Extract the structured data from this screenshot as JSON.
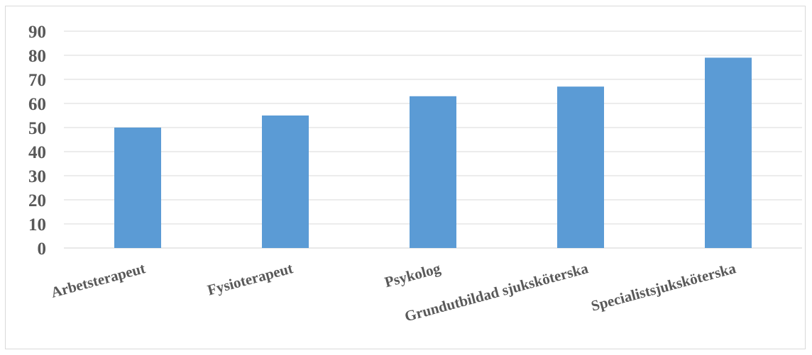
{
  "chart_data": {
    "type": "bar",
    "title": "",
    "xlabel": "",
    "ylabel": "",
    "ylim": [
      0,
      90
    ],
    "yticks": [
      0,
      10,
      20,
      30,
      40,
      50,
      60,
      70,
      80,
      90
    ],
    "grid": true,
    "categories": [
      "Arbetsterapeut",
      "Fysioterapeut",
      "Psykolog",
      "Grundutbildad sjuksköterska",
      "Specialistsjuksköterska"
    ],
    "values": [
      50,
      55,
      63,
      67,
      79
    ],
    "colors": {
      "bar": "#5b9bd5",
      "grid": "#d9d9d9",
      "text": "#595959"
    }
  }
}
